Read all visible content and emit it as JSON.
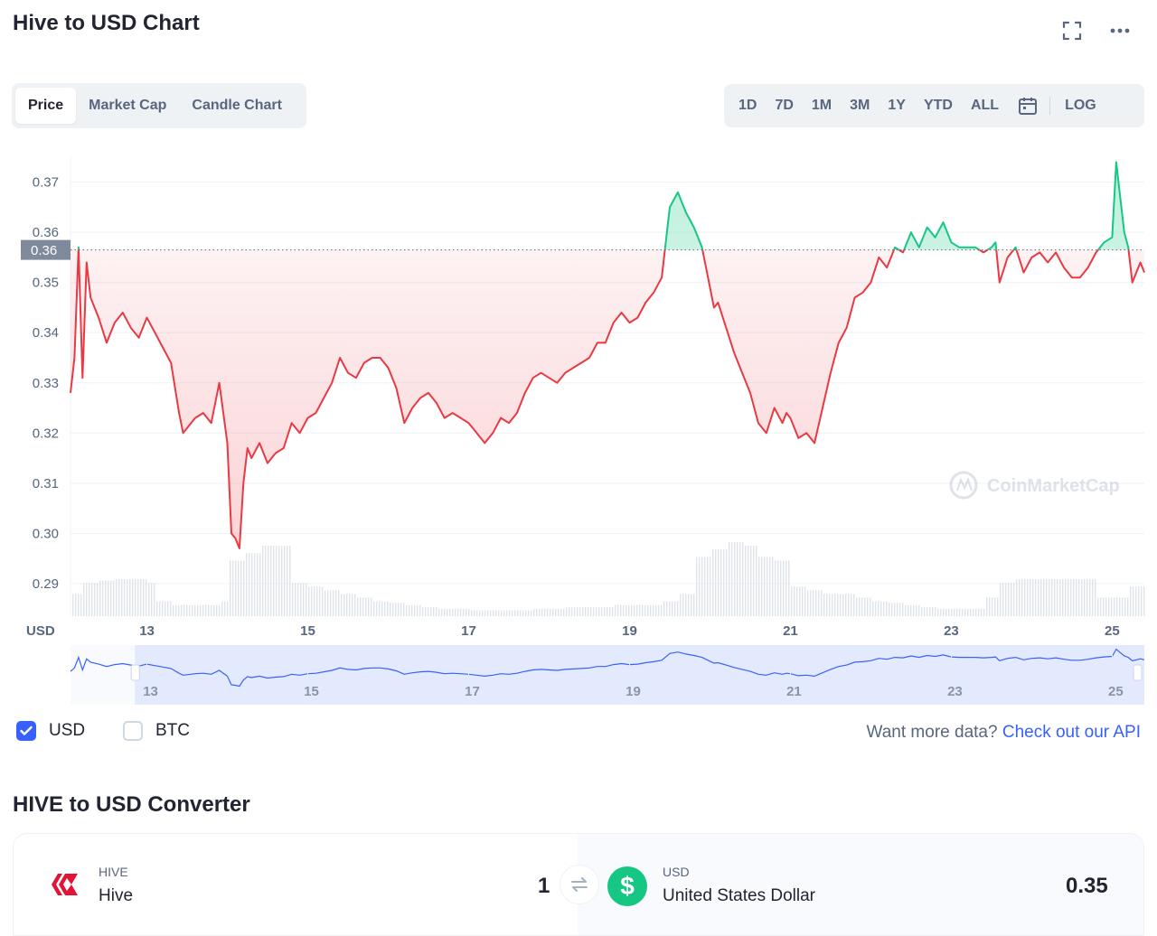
{
  "page": {
    "title": "Hive to USD Chart",
    "icons": {
      "fullscreen": "fullscreen-icon",
      "more": "more-icon",
      "calendar": "calendar-icon",
      "swap": "swap-icon"
    }
  },
  "tabs": [
    "Price",
    "Market Cap",
    "Candle Chart"
  ],
  "active_tab": "Price",
  "ranges": [
    "1D",
    "7D",
    "1M",
    "3M",
    "1Y",
    "YTD",
    "ALL"
  ],
  "log_label": "LOG",
  "colors": {
    "up": "#16c784",
    "down": "#ea3943",
    "accent": "#3861fb",
    "text": "#222531",
    "muted": "#58667e"
  },
  "chart_data": {
    "type": "area",
    "x_unit": "day of month",
    "y_unit": "USD",
    "y_ticks": [
      0.29,
      0.3,
      0.31,
      0.32,
      0.33,
      0.34,
      0.35,
      0.36,
      0.37
    ],
    "y_tick_labels": [
      "0.29",
      "0.30",
      "0.31",
      "0.32",
      "0.33",
      "0.34",
      "0.35",
      "0.36",
      "0.37"
    ],
    "x_ticks": [
      13,
      15,
      17,
      19,
      21,
      23,
      25
    ],
    "x_tick_labels": [
      "13",
      "15",
      "17",
      "19",
      "21",
      "23",
      "25"
    ],
    "ylim": [
      0.2835,
      0.3775
    ],
    "xlim": [
      12.05,
      25.4
    ],
    "baseline": 0.3565,
    "baseline_label": "0.36",
    "axis_unit_label": "USD",
    "grid": true,
    "watermark": "CoinMarketCap",
    "price": {
      "x": [
        12.05,
        12.1,
        12.15,
        12.2,
        12.25,
        12.3,
        12.4,
        12.5,
        12.6,
        12.7,
        12.8,
        12.9,
        13.0,
        13.1,
        13.2,
        13.3,
        13.4,
        13.45,
        13.5,
        13.6,
        13.7,
        13.8,
        13.9,
        14.0,
        14.05,
        14.1,
        14.15,
        14.2,
        14.25,
        14.3,
        14.4,
        14.5,
        14.6,
        14.7,
        14.8,
        14.9,
        15.0,
        15.1,
        15.2,
        15.3,
        15.4,
        15.5,
        15.6,
        15.7,
        15.8,
        15.9,
        16.0,
        16.1,
        16.2,
        16.3,
        16.4,
        16.5,
        16.6,
        16.7,
        16.8,
        16.9,
        17.0,
        17.1,
        17.2,
        17.3,
        17.4,
        17.5,
        17.6,
        17.7,
        17.8,
        17.9,
        18.0,
        18.1,
        18.2,
        18.3,
        18.4,
        18.5,
        18.6,
        18.7,
        18.8,
        18.9,
        19.0,
        19.1,
        19.2,
        19.3,
        19.4,
        19.5,
        19.6,
        19.7,
        19.8,
        19.9,
        20.0,
        20.05,
        20.1,
        20.2,
        20.3,
        20.4,
        20.5,
        20.6,
        20.7,
        20.8,
        20.9,
        20.95,
        21.0,
        21.1,
        21.2,
        21.3,
        21.4,
        21.5,
        21.6,
        21.7,
        21.8,
        21.9,
        22.0,
        22.1,
        22.2,
        22.3,
        22.4,
        22.5,
        22.6,
        22.7,
        22.8,
        22.9,
        23.0,
        23.1,
        23.2,
        23.3,
        23.4,
        23.5,
        23.55,
        23.6,
        23.7,
        23.8,
        23.9,
        24.0,
        24.1,
        24.2,
        24.3,
        24.4,
        24.5,
        24.6,
        24.7,
        24.8,
        24.9,
        25.0,
        25.05,
        25.1,
        25.15,
        25.2,
        25.25,
        25.3,
        25.35,
        25.4
      ],
      "y": [
        0.328,
        0.335,
        0.357,
        0.331,
        0.354,
        0.347,
        0.343,
        0.338,
        0.342,
        0.344,
        0.341,
        0.339,
        0.343,
        0.34,
        0.337,
        0.334,
        0.324,
        0.32,
        0.321,
        0.323,
        0.324,
        0.322,
        0.33,
        0.318,
        0.3,
        0.299,
        0.297,
        0.31,
        0.317,
        0.315,
        0.318,
        0.314,
        0.316,
        0.317,
        0.322,
        0.32,
        0.323,
        0.324,
        0.327,
        0.33,
        0.335,
        0.332,
        0.331,
        0.334,
        0.335,
        0.335,
        0.333,
        0.329,
        0.322,
        0.325,
        0.327,
        0.328,
        0.326,
        0.323,
        0.324,
        0.323,
        0.322,
        0.32,
        0.318,
        0.32,
        0.323,
        0.322,
        0.324,
        0.328,
        0.331,
        0.332,
        0.331,
        0.33,
        0.332,
        0.333,
        0.334,
        0.335,
        0.338,
        0.338,
        0.342,
        0.344,
        0.342,
        0.343,
        0.346,
        0.348,
        0.351,
        0.365,
        0.368,
        0.364,
        0.361,
        0.357,
        0.349,
        0.345,
        0.346,
        0.341,
        0.336,
        0.332,
        0.328,
        0.322,
        0.32,
        0.325,
        0.322,
        0.324,
        0.323,
        0.319,
        0.32,
        0.318,
        0.325,
        0.332,
        0.338,
        0.341,
        0.347,
        0.348,
        0.35,
        0.355,
        0.353,
        0.357,
        0.356,
        0.36,
        0.357,
        0.361,
        0.359,
        0.362,
        0.358,
        0.357,
        0.357,
        0.357,
        0.356,
        0.357,
        0.358,
        0.35,
        0.355,
        0.357,
        0.352,
        0.355,
        0.356,
        0.354,
        0.356,
        0.353,
        0.351,
        0.351,
        0.353,
        0.356,
        0.358,
        0.359,
        0.374,
        0.367,
        0.36,
        0.357,
        0.35,
        0.352,
        0.354,
        0.352
      ]
    },
    "volume_relative": {
      "x": [
        12.05,
        12.2,
        12.4,
        12.6,
        12.8,
        13.0,
        13.1,
        13.3,
        13.5,
        13.7,
        13.9,
        14.0,
        14.2,
        14.4,
        14.6,
        14.8,
        15.0,
        15.2,
        15.4,
        15.6,
        15.8,
        16.0,
        16.2,
        16.4,
        16.6,
        16.8,
        17.0,
        17.2,
        17.4,
        17.6,
        17.8,
        18.0,
        18.2,
        18.4,
        18.6,
        18.8,
        19.0,
        19.2,
        19.4,
        19.6,
        19.8,
        20.0,
        20.2,
        20.4,
        20.6,
        20.8,
        21.0,
        21.2,
        21.4,
        21.6,
        21.8,
        22.0,
        22.2,
        22.4,
        22.6,
        22.8,
        23.0,
        23.2,
        23.4,
        23.6,
        23.8,
        24.0,
        24.2,
        24.4,
        24.6,
        24.8,
        25.0,
        25.2,
        25.4
      ],
      "v": [
        0.3,
        0.45,
        0.48,
        0.5,
        0.5,
        0.45,
        0.2,
        0.15,
        0.15,
        0.15,
        0.2,
        0.75,
        0.85,
        0.95,
        0.95,
        0.45,
        0.4,
        0.35,
        0.3,
        0.25,
        0.2,
        0.18,
        0.15,
        0.12,
        0.1,
        0.1,
        0.08,
        0.08,
        0.08,
        0.08,
        0.1,
        0.1,
        0.12,
        0.12,
        0.12,
        0.15,
        0.15,
        0.15,
        0.2,
        0.3,
        0.8,
        0.9,
        1.0,
        0.95,
        0.8,
        0.75,
        0.4,
        0.35,
        0.3,
        0.3,
        0.25,
        0.2,
        0.18,
        0.15,
        0.12,
        0.1,
        0.1,
        0.1,
        0.25,
        0.45,
        0.5,
        0.5,
        0.5,
        0.5,
        0.5,
        0.25,
        0.25,
        0.4,
        0.4
      ]
    },
    "navigator": {
      "x_tick_labels": [
        "13",
        "15",
        "17",
        "19",
        "21",
        "23",
        "25"
      ],
      "selection": [
        12.85,
        25.4
      ]
    }
  },
  "currency_toggles": [
    {
      "label": "USD",
      "checked": true
    },
    {
      "label": "BTC",
      "checked": false
    }
  ],
  "api_prompt": "Want more data?",
  "api_link": "Check out our API",
  "converter": {
    "title": "HIVE to USD Converter",
    "from": {
      "symbol": "HIVE",
      "name": "Hive",
      "amount": "1",
      "icon": "hive-logo-icon"
    },
    "to": {
      "symbol": "USD",
      "name": "United States Dollar",
      "amount": "0.35",
      "icon": "dollar-icon",
      "glyph": "$"
    }
  }
}
